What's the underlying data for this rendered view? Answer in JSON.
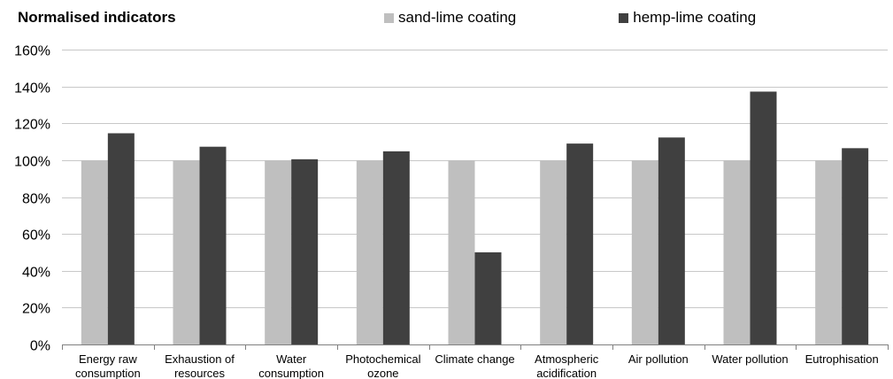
{
  "chart_data": {
    "type": "bar",
    "title": "Normalised indicators",
    "xlabel": "",
    "ylabel": "",
    "ylim": [
      0,
      160
    ],
    "yticks": [
      "0%",
      "20%",
      "40%",
      "60%",
      "80%",
      "100%",
      "120%",
      "140%",
      "160%"
    ],
    "grid": true,
    "legend_position": "top",
    "categories": [
      "Energy raw consumption",
      "Exhaustion of resources",
      "Water consumption",
      "Photochemical ozone",
      "Climate change",
      "Atmospheric acidification",
      "Air pollution",
      "Water pollution",
      "Eutrophisation"
    ],
    "series": [
      {
        "name": "sand-lime coating",
        "color": "#bfbfbf",
        "values": [
          100,
          100,
          100,
          100,
          100,
          100,
          100,
          100,
          100
        ]
      },
      {
        "name": "hemp-lime coating",
        "color": "#404040",
        "values": [
          114.6,
          107.3,
          100.5,
          104.8,
          50,
          109,
          112.3,
          137.2,
          106.5
        ]
      }
    ]
  }
}
